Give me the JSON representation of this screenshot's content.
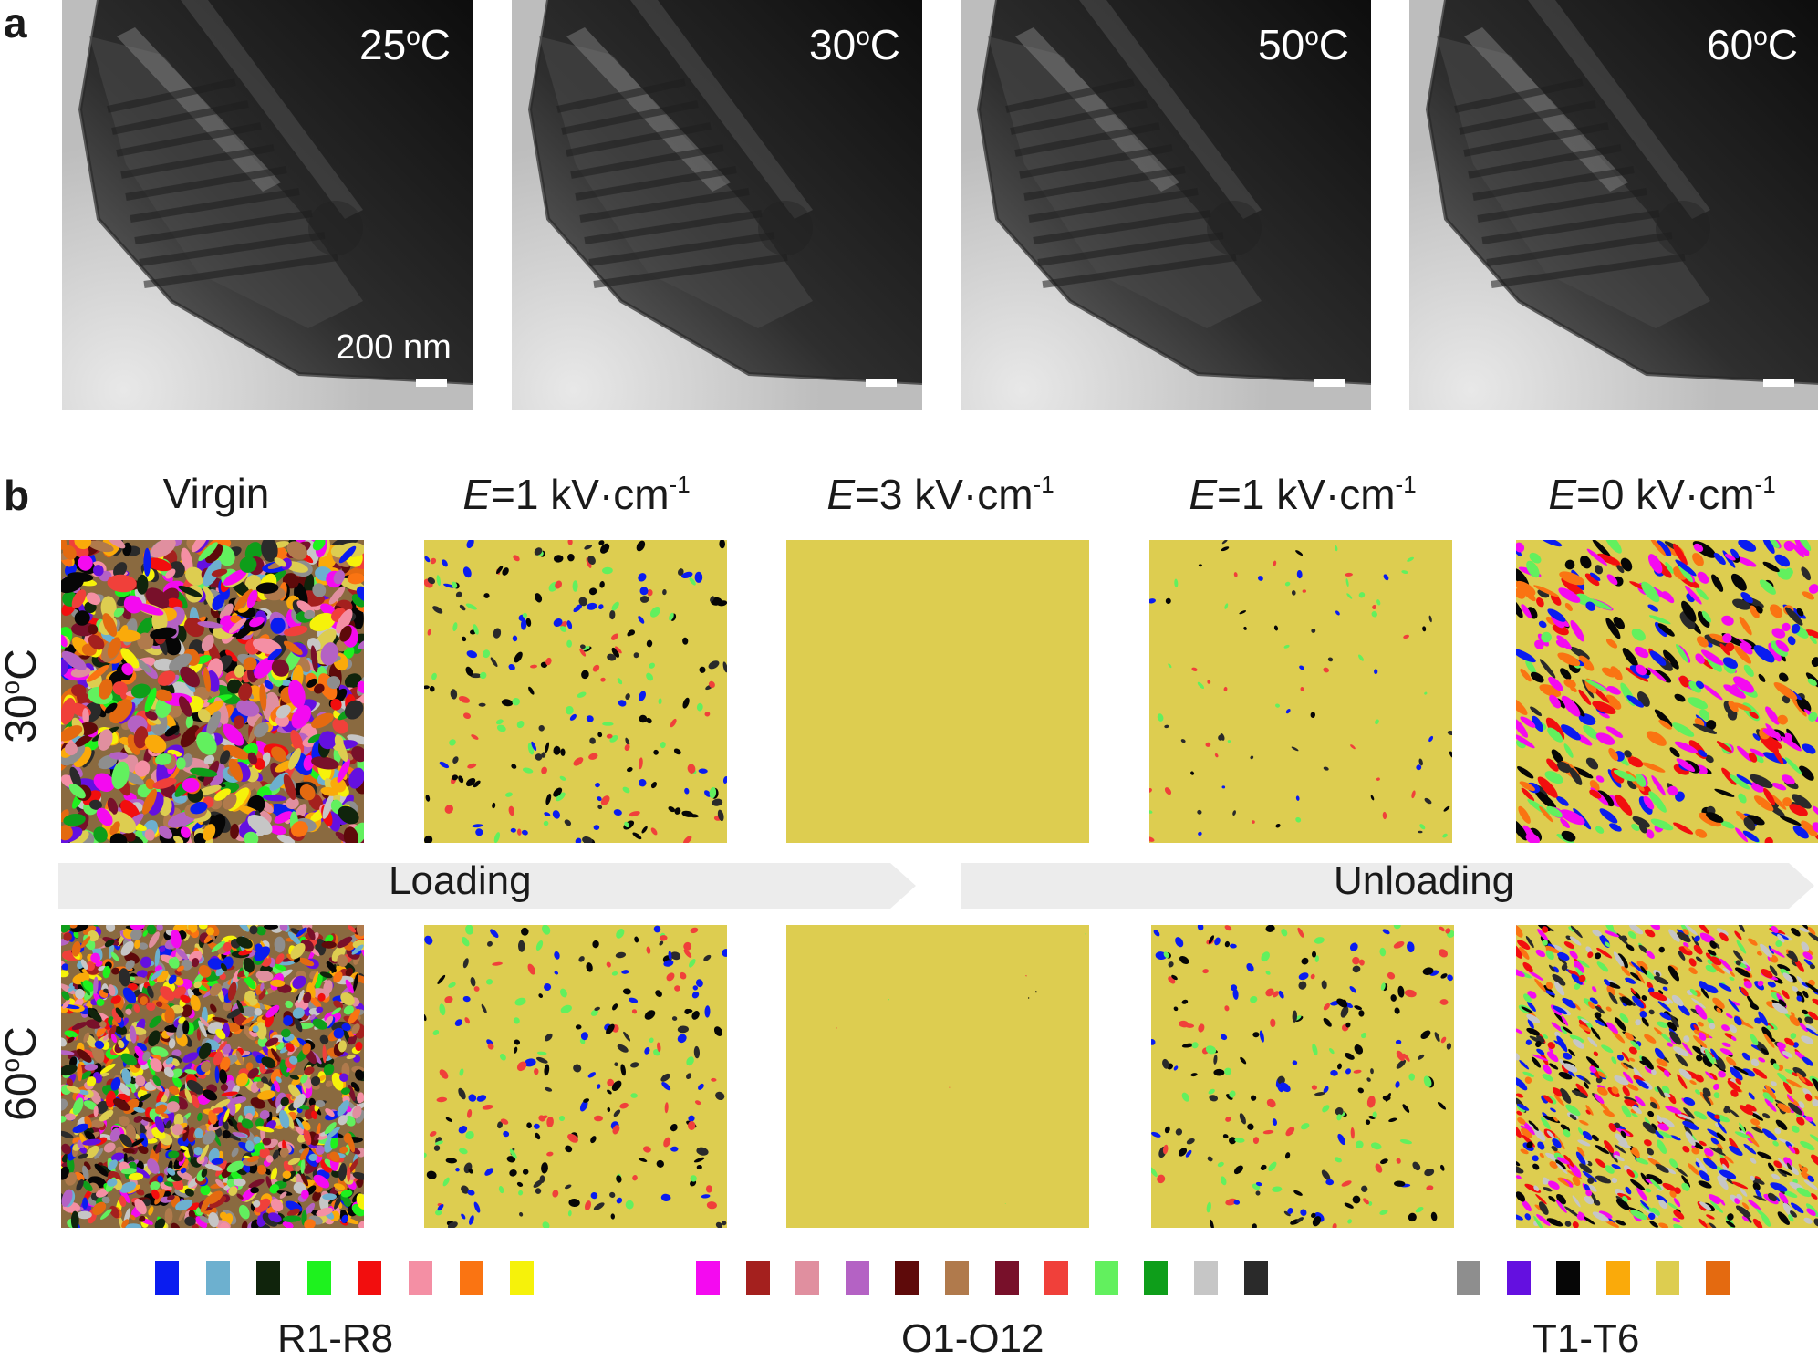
{
  "panel_a": {
    "letter": "a",
    "images": [
      {
        "temp": "25",
        "sup": "o",
        "unit": "C"
      },
      {
        "temp": "30",
        "sup": "o",
        "unit": "C"
      },
      {
        "temp": "50",
        "sup": "o",
        "unit": "C"
      },
      {
        "temp": "60",
        "sup": "o",
        "unit": "C"
      }
    ],
    "scale_bar_label": "200 nm"
  },
  "panel_b": {
    "letter": "b",
    "columns": [
      {
        "label": "Virgin"
      },
      {
        "var": "E",
        "text": "=1 kV·cm",
        "sup": "-1"
      },
      {
        "var": "E",
        "text": "=3 kV·cm",
        "sup": "-1"
      },
      {
        "var": "E",
        "text": "=1 kV·cm",
        "sup": "-1"
      },
      {
        "var": "E",
        "text": "=0 kV·cm",
        "sup": "-1"
      }
    ],
    "rows": [
      {
        "temp": "30",
        "sup": "o",
        "unit": "C"
      },
      {
        "temp": "60",
        "sup": "o",
        "unit": "C"
      }
    ],
    "arrows": {
      "loading": "Loading",
      "unloading": "Unloading"
    },
    "legend": {
      "groups": [
        {
          "label": "R1-R8",
          "colors": [
            "#0a1cf0",
            "#6db0cf",
            "#10240c",
            "#1ef21e",
            "#f20e0e",
            "#f48fa4",
            "#fa7412",
            "#f6f20a"
          ]
        },
        {
          "label": "O1-O12",
          "colors": [
            "#f40af0",
            "#a4201e",
            "#e08f9f",
            "#b462c4",
            "#5e0a0a",
            "#b07a4c",
            "#78102a",
            "#f0403a",
            "#62f05e",
            "#0e9e1a",
            "#c6c6c6",
            "#2a2a2a"
          ]
        },
        {
          "label": "T1-T6",
          "colors": [
            "#8e8e8e",
            "#6410e0",
            "#060606",
            "#faaa0a",
            "#ddcd50",
            "#e46a10"
          ]
        }
      ]
    }
  }
}
